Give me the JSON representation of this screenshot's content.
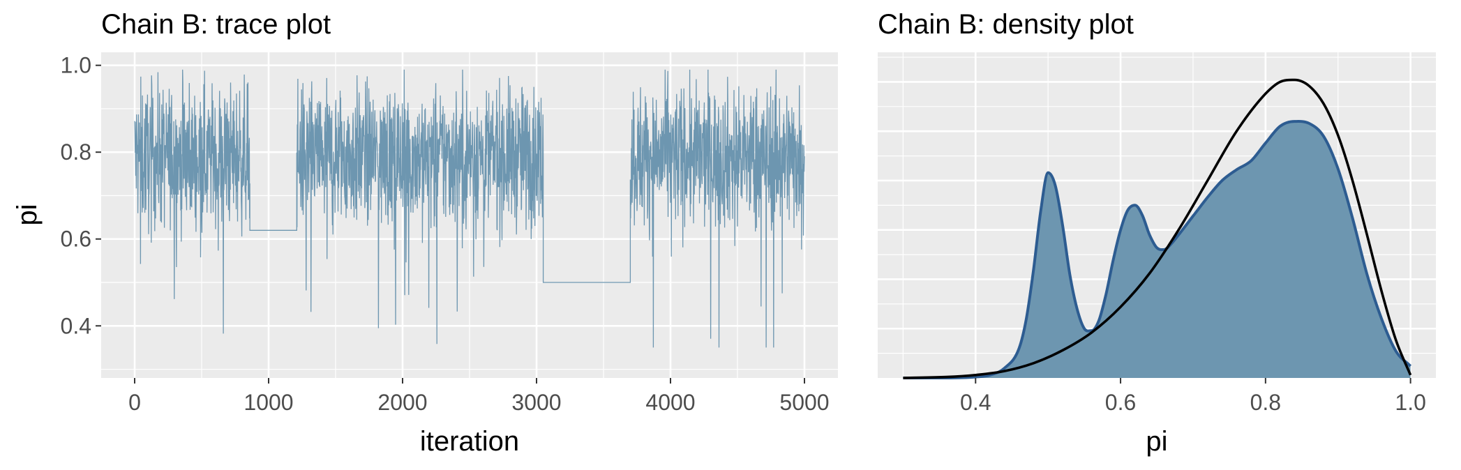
{
  "chart_data": [
    {
      "type": "line",
      "title": "Chain B: trace plot",
      "xlabel": "iteration",
      "ylabel": "pi",
      "xlim": [
        -250,
        5250
      ],
      "ylim": [
        0.28,
        1.03
      ],
      "x_ticks": [
        0,
        1000,
        2000,
        3000,
        4000,
        5000
      ],
      "x_tick_labels": [
        "0",
        "1000",
        "2000",
        "3000",
        "4000",
        "5000"
      ],
      "y_ticks": [
        0.4,
        0.6,
        0.8,
        1.0
      ],
      "y_tick_labels": [
        "0.4",
        "0.6",
        "0.8",
        "1.0"
      ],
      "grid": true,
      "series": [
        {
          "color": "#6d96b0",
          "segments": [
            {
              "type": "noise",
              "start": 0,
              "end": 860,
              "center": 0.79,
              "spread": 0.08,
              "min": 0.33,
              "max": 0.99
            },
            {
              "type": "flat",
              "start": 860,
              "end": 1210,
              "value": 0.62
            },
            {
              "type": "noise",
              "start": 1210,
              "end": 3050,
              "center": 0.79,
              "spread": 0.08,
              "min": 0.33,
              "max": 0.99
            },
            {
              "type": "flat",
              "start": 3050,
              "end": 3700,
              "value": 0.5
            },
            {
              "type": "noise",
              "start": 3700,
              "end": 5000,
              "center": 0.79,
              "spread": 0.08,
              "min": 0.35,
              "max": 0.99
            }
          ]
        }
      ]
    },
    {
      "type": "area",
      "title": "Chain B: density plot",
      "xlabel": "pi",
      "ylabel": "",
      "xlim": [
        0.265,
        1.035
      ],
      "ylim": [
        0,
        3.3
      ],
      "x_ticks": [
        0.4,
        0.6,
        0.8,
        1.0
      ],
      "x_tick_labels": [
        "0.4",
        "0.6",
        "0.8",
        "1.0"
      ],
      "y_tick_labels": [],
      "grid": true,
      "series": [
        {
          "kind": "density-area",
          "fill": "#6d96b0",
          "stroke": "#2d5c91",
          "x": [
            0.3,
            0.36,
            0.4,
            0.42,
            0.44,
            0.46,
            0.47,
            0.48,
            0.49,
            0.5,
            0.51,
            0.52,
            0.53,
            0.54,
            0.55,
            0.56,
            0.57,
            0.58,
            0.59,
            0.6,
            0.61,
            0.62,
            0.63,
            0.64,
            0.65,
            0.66,
            0.67,
            0.68,
            0.7,
            0.72,
            0.74,
            0.76,
            0.78,
            0.8,
            0.82,
            0.84,
            0.86,
            0.88,
            0.9,
            0.92,
            0.94,
            0.96,
            0.98,
            1.0
          ],
          "y": [
            0.0,
            0.0,
            0.01,
            0.03,
            0.1,
            0.3,
            0.6,
            1.1,
            1.7,
            2.08,
            1.95,
            1.55,
            1.05,
            0.7,
            0.5,
            0.48,
            0.58,
            0.85,
            1.2,
            1.5,
            1.7,
            1.75,
            1.65,
            1.45,
            1.32,
            1.3,
            1.36,
            1.45,
            1.64,
            1.83,
            2.0,
            2.11,
            2.2,
            2.38,
            2.55,
            2.6,
            2.58,
            2.45,
            2.12,
            1.62,
            1.05,
            0.6,
            0.27,
            0.12
          ]
        },
        {
          "kind": "density-line",
          "stroke": "#000000",
          "x": [
            0.3,
            0.36,
            0.4,
            0.44,
            0.48,
            0.52,
            0.56,
            0.6,
            0.64,
            0.68,
            0.72,
            0.76,
            0.8,
            0.82,
            0.84,
            0.86,
            0.88,
            0.9,
            0.92,
            0.94,
            0.96,
            0.98,
            1.0
          ],
          "y": [
            0.0,
            0.01,
            0.03,
            0.07,
            0.15,
            0.28,
            0.46,
            0.72,
            1.06,
            1.5,
            2.0,
            2.5,
            2.88,
            3.0,
            3.02,
            2.96,
            2.78,
            2.46,
            2.0,
            1.45,
            0.88,
            0.38,
            0.03
          ]
        }
      ]
    }
  ]
}
